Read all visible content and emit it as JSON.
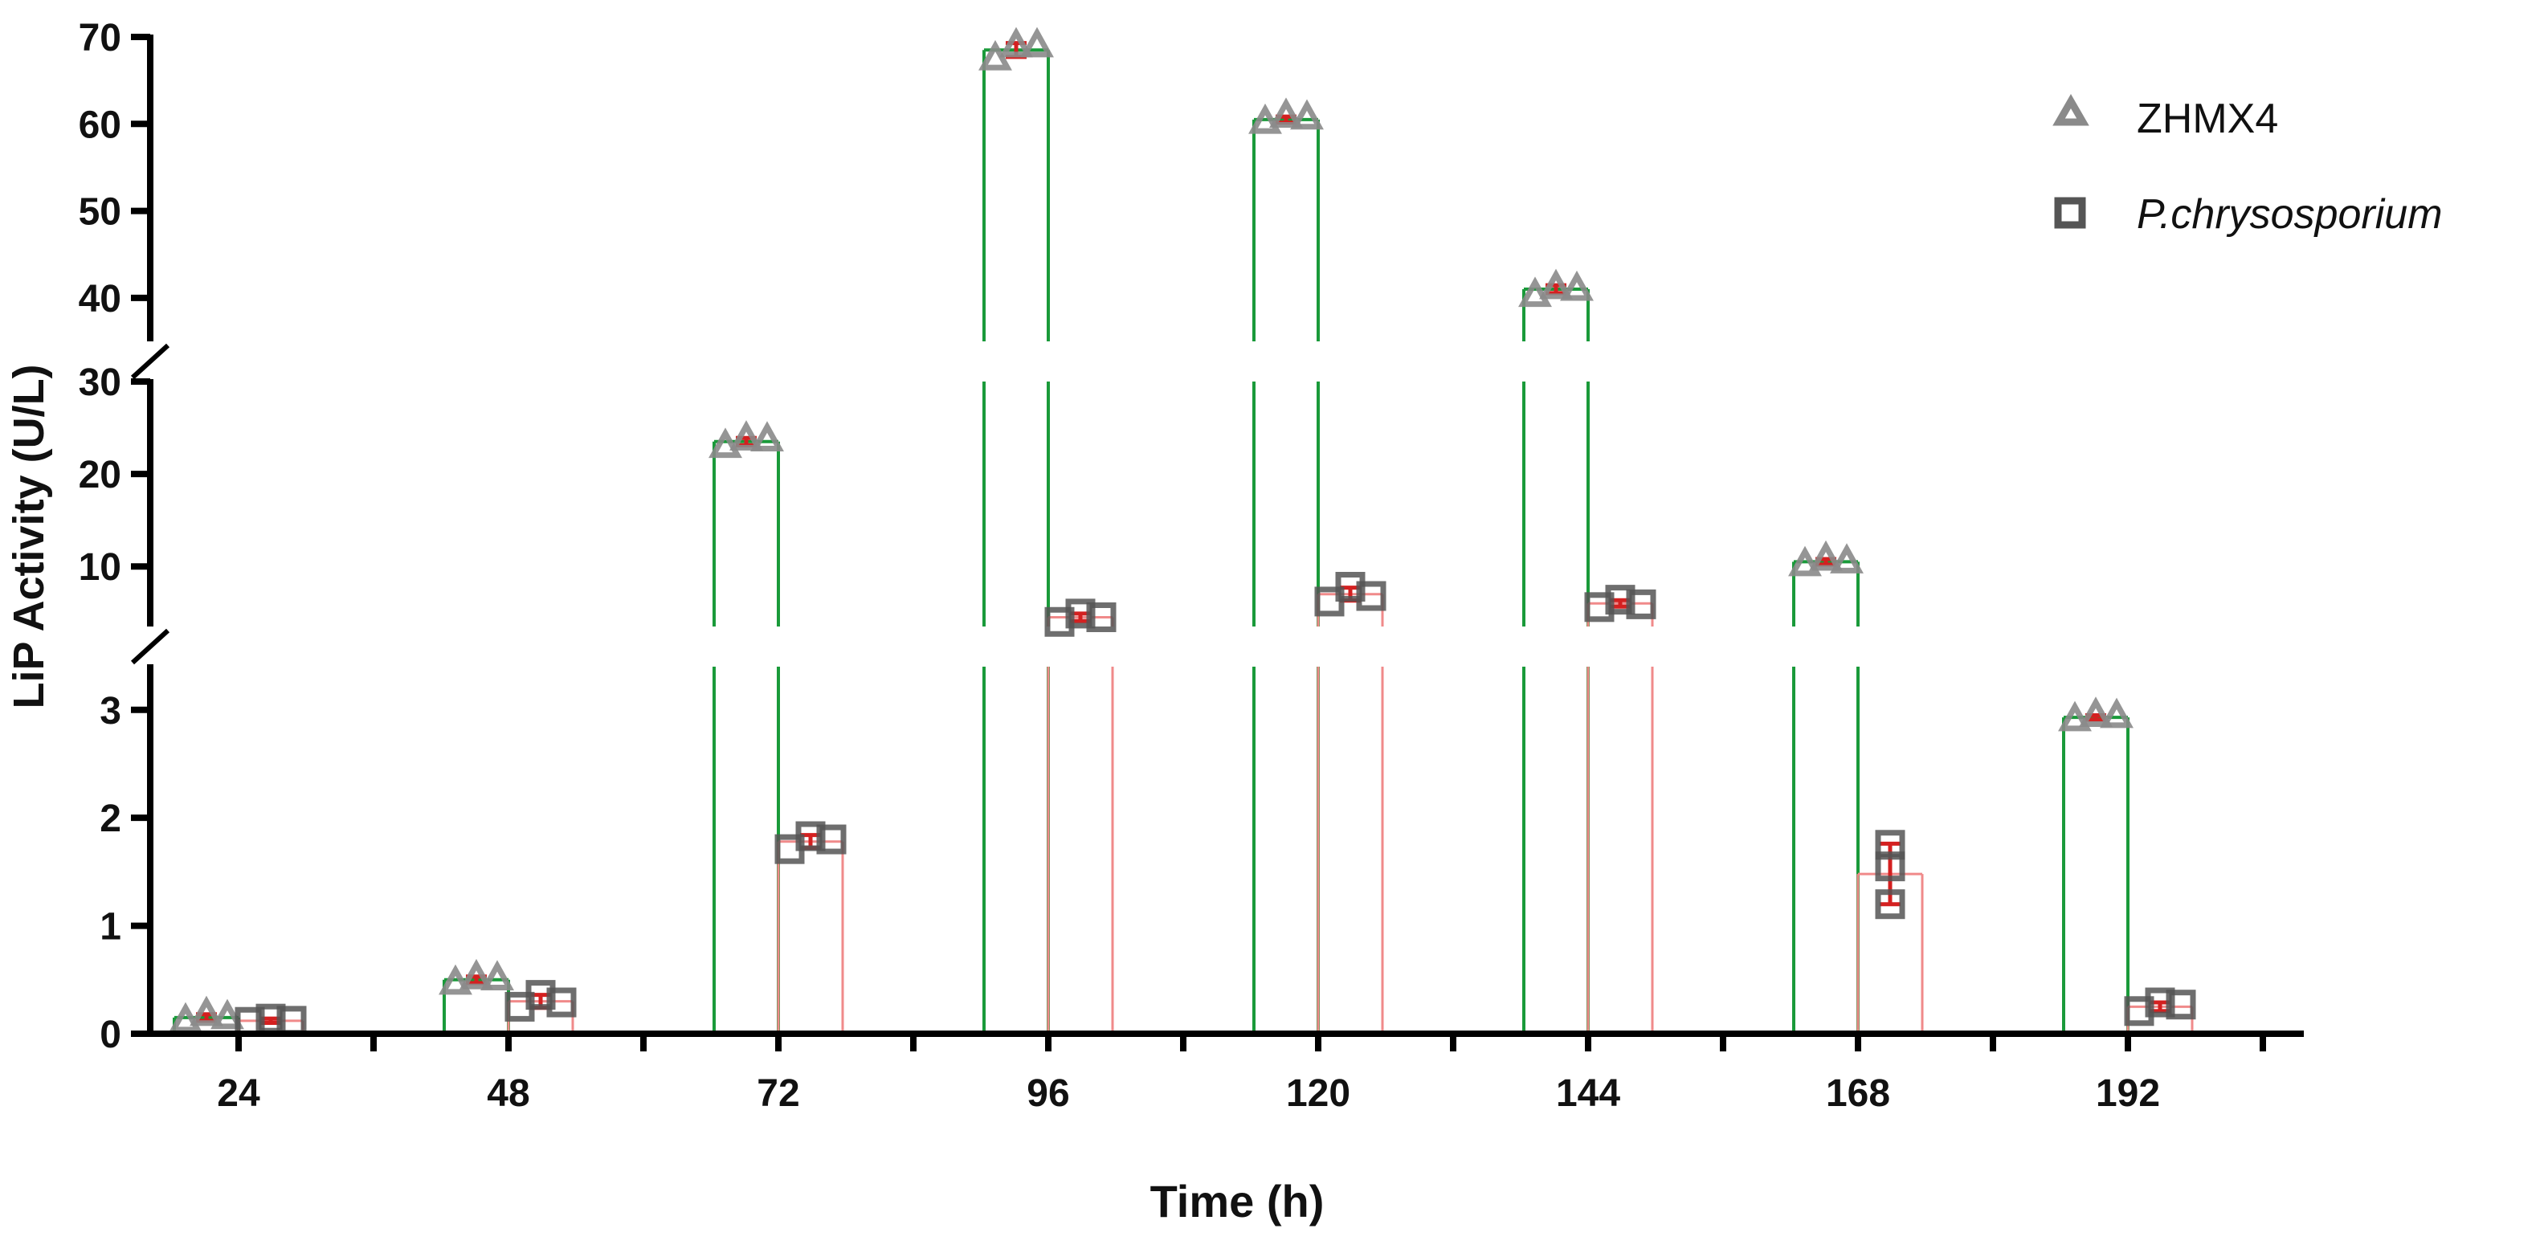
{
  "chart_data": {
    "type": "bar",
    "ylabel": "LiP Activity (U/L)",
    "xlabel": "Time (h)",
    "categories": [
      "24",
      "48",
      "72",
      "96",
      "120",
      "144",
      "168",
      "192"
    ],
    "y_axis_segments": [
      {
        "range": [
          0,
          3.4
        ],
        "ticks": [
          0,
          1,
          2,
          3
        ]
      },
      {
        "range": [
          3.5,
          30
        ],
        "ticks": [
          10,
          20,
          30
        ]
      },
      {
        "range": [
          35,
          70
        ],
        "ticks": [
          40,
          50,
          60,
          70
        ]
      }
    ],
    "legend": {
      "position": "top-right"
    },
    "series": [
      {
        "name": "ZHMX4",
        "italic": false,
        "marker": "triangle",
        "bar_color": "#1a9a3a",
        "values": [
          0.15,
          0.5,
          23.5,
          68.5,
          60.5,
          41.0,
          10.5,
          2.93
        ],
        "points": [
          [
            0.12,
            0.18,
            0.15
          ],
          [
            0.47,
            0.52,
            0.51
          ],
          [
            23.0,
            23.8,
            23.7
          ],
          [
            67.5,
            69.0,
            69.0
          ],
          [
            60.2,
            60.9,
            60.7
          ],
          [
            40.3,
            41.2,
            41.0
          ],
          [
            10.2,
            10.8,
            10.5
          ],
          [
            2.91,
            2.95,
            2.94
          ]
        ],
        "errors": [
          0.03,
          0.03,
          0.4,
          0.8,
          0.35,
          0.45,
          0.3,
          0.02
        ]
      },
      {
        "name": "P.chrysosporium",
        "italic": true,
        "marker": "square",
        "bar_color": "#f08a8a",
        "values": [
          0.12,
          0.3,
          1.78,
          4.5,
          7.0,
          6.0,
          1.48,
          0.25
        ],
        "points": [
          [
            0.11,
            0.14,
            0.12
          ],
          [
            0.25,
            0.36,
            0.29
          ],
          [
            1.71,
            1.83,
            1.8
          ],
          [
            4.0,
            4.9,
            4.5
          ],
          [
            6.2,
            7.8,
            6.8
          ],
          [
            5.6,
            6.4,
            5.9
          ],
          [
            1.2,
            1.55,
            1.75
          ],
          [
            0.21,
            0.29,
            0.27
          ]
        ],
        "errors": [
          0.02,
          0.06,
          0.06,
          0.4,
          0.7,
          0.35,
          0.28,
          0.04
        ]
      }
    ]
  }
}
